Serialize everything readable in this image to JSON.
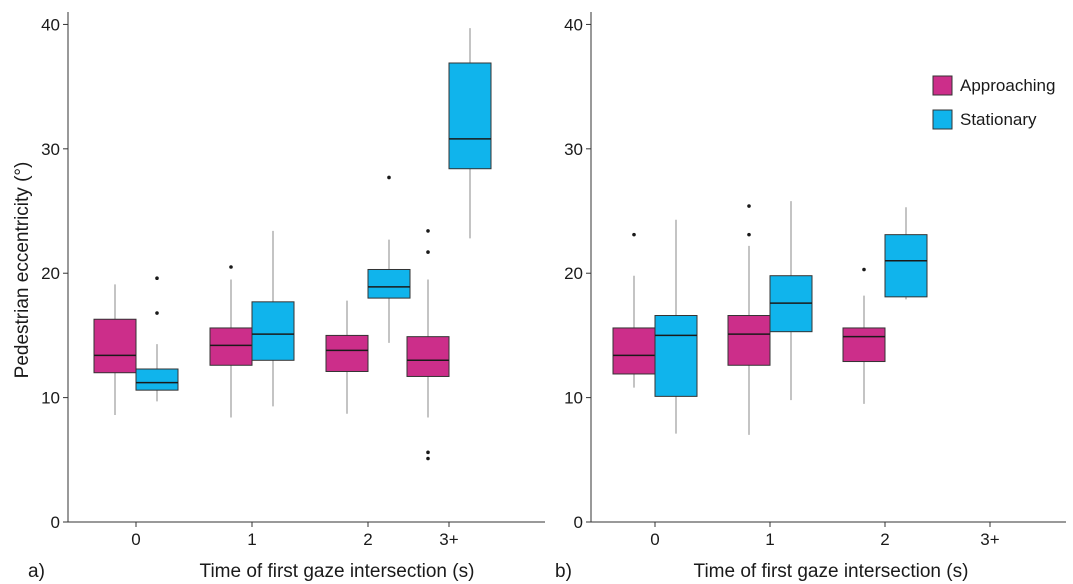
{
  "colors": {
    "Approaching": "#cc2e8a",
    "Stationary": "#10b4ec"
  },
  "chart_data": [
    {
      "type": "boxplot",
      "panel_label": "a)",
      "xlabel": "Time of first gaze intersection (s)",
      "ylabel": "Pedestrian eccentricity (°)",
      "categories": [
        "0",
        "1",
        "2",
        "3+"
      ],
      "ylim": [
        0,
        41
      ],
      "yticks": [
        "0",
        "10",
        "20",
        "30",
        "40"
      ],
      "ytick_values": [
        0,
        10,
        20,
        30,
        40
      ],
      "grid": false,
      "legend": "none",
      "series": [
        {
          "name": "Approaching",
          "boxes": [
            {
              "category": "0",
              "min": 8.6,
              "q1": 12.0,
              "median": 13.4,
              "q3": 16.3,
              "max": 19.1,
              "outliers": []
            },
            {
              "category": "1",
              "min": 8.4,
              "q1": 12.6,
              "median": 14.2,
              "q3": 15.6,
              "max": 19.5,
              "outliers": [
                20.5
              ]
            },
            {
              "category": "2",
              "min": 8.7,
              "q1": 12.1,
              "median": 13.8,
              "q3": 15.0,
              "max": 17.8,
              "outliers": []
            },
            {
              "category": "3+",
              "min": 8.4,
              "q1": 11.7,
              "median": 13.0,
              "q3": 14.9,
              "max": 19.5,
              "outliers": [
                21.7,
                23.4,
                5.1,
                5.6
              ]
            }
          ]
        },
        {
          "name": "Stationary",
          "boxes": [
            {
              "category": "0",
              "min": 9.7,
              "q1": 10.6,
              "median": 11.2,
              "q3": 12.3,
              "max": 14.3,
              "outliers": [
                16.8,
                19.6
              ]
            },
            {
              "category": "1",
              "min": 9.3,
              "q1": 13.0,
              "median": 15.1,
              "q3": 17.7,
              "max": 23.4,
              "outliers": []
            },
            {
              "category": "2",
              "min": 14.4,
              "q1": 18.0,
              "median": 18.9,
              "q3": 20.3,
              "max": 22.7,
              "outliers": [
                27.7
              ]
            },
            {
              "category": "3+",
              "min": 22.8,
              "q1": 28.4,
              "median": 30.8,
              "q3": 36.9,
              "max": 39.7,
              "outliers": []
            }
          ]
        }
      ]
    },
    {
      "type": "boxplot",
      "panel_label": "b)",
      "xlabel": "Time of first gaze intersection (s)",
      "ylabel": "",
      "categories": [
        "0",
        "1",
        "2",
        "3+"
      ],
      "ylim": [
        0,
        41
      ],
      "yticks": [
        "0",
        "10",
        "20",
        "30",
        "40"
      ],
      "ytick_values": [
        0,
        10,
        20,
        30,
        40
      ],
      "grid": false,
      "legend": "top-right",
      "series": [
        {
          "name": "Approaching",
          "boxes": [
            {
              "category": "0",
              "min": 10.8,
              "q1": 11.9,
              "median": 13.4,
              "q3": 15.6,
              "max": 19.8,
              "outliers": [
                23.1
              ]
            },
            {
              "category": "1",
              "min": 7.0,
              "q1": 12.6,
              "median": 15.1,
              "q3": 16.6,
              "max": 22.2,
              "outliers": [
                23.1,
                25.4
              ]
            },
            {
              "category": "2",
              "min": 9.5,
              "q1": 12.9,
              "median": 14.9,
              "q3": 15.6,
              "max": 18.2,
              "outliers": [
                20.3
              ]
            }
          ]
        },
        {
          "name": "Stationary",
          "boxes": [
            {
              "category": "0",
              "min": 7.1,
              "q1": 10.1,
              "median": 15.0,
              "q3": 16.6,
              "max": 24.3,
              "outliers": []
            },
            {
              "category": "1",
              "min": 9.8,
              "q1": 15.3,
              "median": 17.6,
              "q3": 19.8,
              "max": 25.8,
              "outliers": []
            },
            {
              "category": "2",
              "min": 17.9,
              "q1": 18.1,
              "median": 21.0,
              "q3": 23.1,
              "max": 25.3,
              "outliers": []
            }
          ]
        }
      ]
    }
  ]
}
